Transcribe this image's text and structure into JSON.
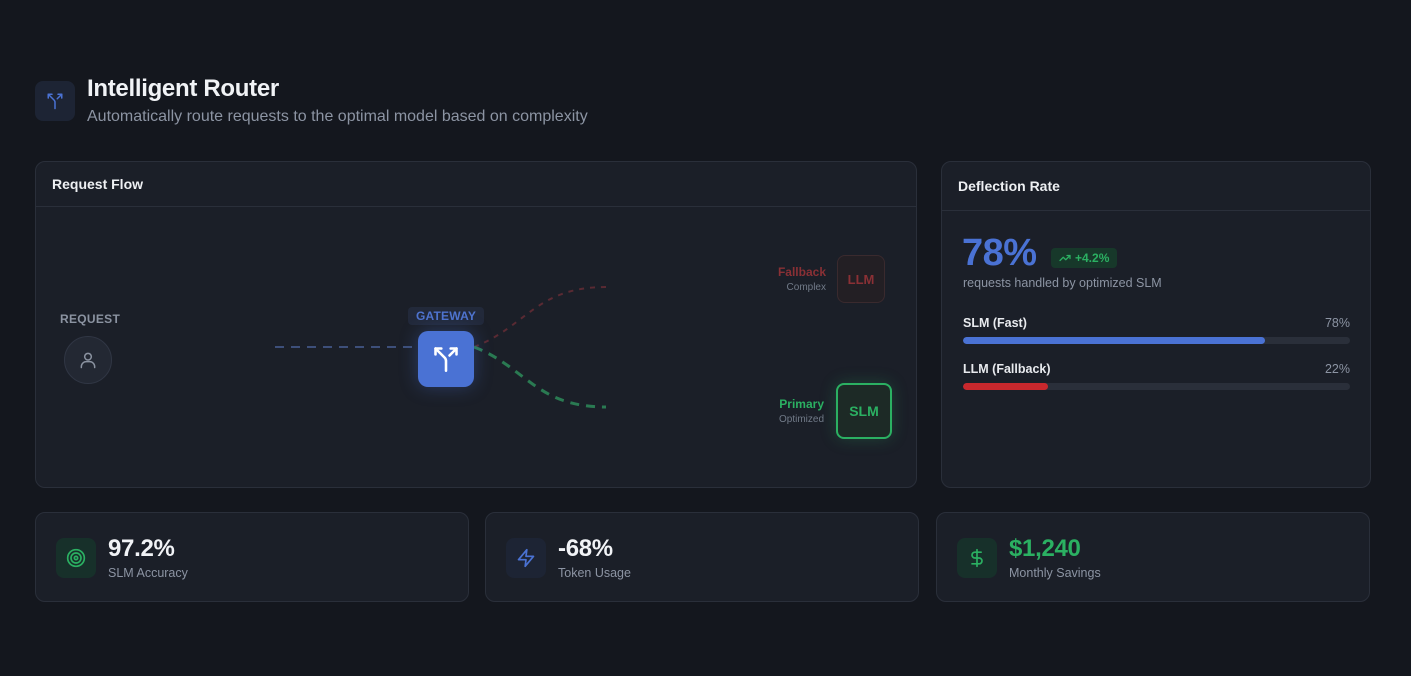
{
  "header": {
    "title": "Intelligent Router",
    "subtitle": "Automatically route requests to the optimal model based on complexity",
    "icon": "split-route-icon"
  },
  "flow": {
    "title": "Request Flow",
    "request_label": "REQUEST",
    "gateway_label": "GATEWAY",
    "fallback": {
      "label": "Fallback",
      "sub": "Complex",
      "model": "LLM"
    },
    "primary": {
      "label": "Primary",
      "sub": "Optimized",
      "model": "SLM"
    }
  },
  "deflection": {
    "title": "Deflection Rate",
    "rate": "78%",
    "delta": "+4.2%",
    "description": "requests handled by optimized SLM",
    "bars": [
      {
        "name": "SLM (Fast)",
        "pct_label": "78%",
        "value": 78,
        "color": "#4a72d4"
      },
      {
        "name": "LLM (Fallback)",
        "pct_label": "22%",
        "value": 22,
        "color": "#c8282d"
      }
    ]
  },
  "stats": [
    {
      "value": "97.2%",
      "label": "SLM Accuracy",
      "icon": "target-icon",
      "color": "#f1f3f6"
    },
    {
      "value": "-68%",
      "label": "Token Usage",
      "icon": "lightning-icon",
      "color": "#f1f3f6"
    },
    {
      "value": "$1,240",
      "label": "Monthly Savings",
      "icon": "dollar-icon",
      "color": "#2bb062"
    }
  ],
  "colors": {
    "accent": "#4a72d4",
    "success": "#2bb062",
    "danger": "#c8282d"
  }
}
